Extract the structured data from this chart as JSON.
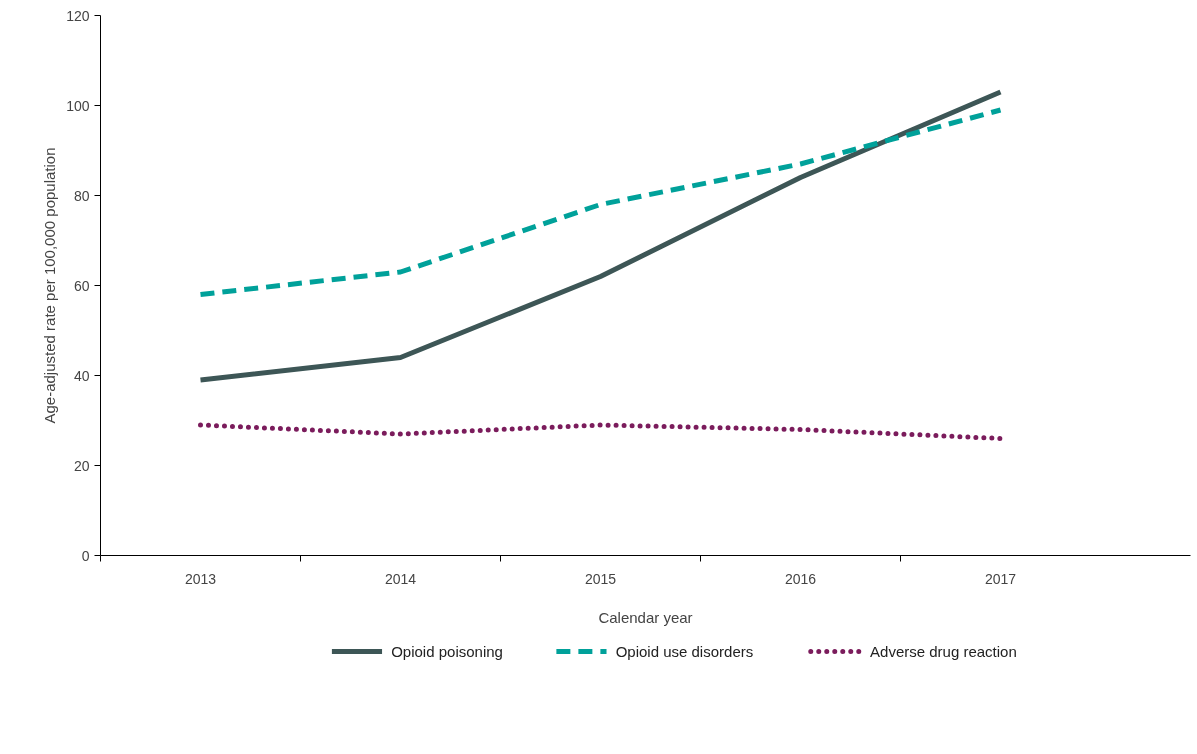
{
  "chart_data": {
    "type": "line",
    "xlabel": "Calendar year",
    "ylabel": "Age-adjusted rate per 100,000 population",
    "categories": [
      "2013",
      "2014",
      "2015",
      "2016",
      "2017"
    ],
    "series": [
      {
        "name": "Opioid poisoning",
        "color": "#3d5656",
        "line_style": "solid",
        "values": [
          39,
          44,
          62,
          84,
          103
        ]
      },
      {
        "name": "Opioid use disorders",
        "color": "#00a19a",
        "line_style": "dashed",
        "values": [
          58,
          63,
          78,
          87,
          99
        ]
      },
      {
        "name": "Adverse drug reaction",
        "color": "#7b1c5c",
        "line_style": "dotted",
        "values": [
          29,
          27,
          29,
          28,
          26
        ]
      }
    ],
    "ylim": [
      0,
      120
    ],
    "yticks": [
      0,
      20,
      40,
      60,
      80,
      100,
      120
    ],
    "grid": false,
    "legend": "bottom",
    "marker": "none"
  }
}
